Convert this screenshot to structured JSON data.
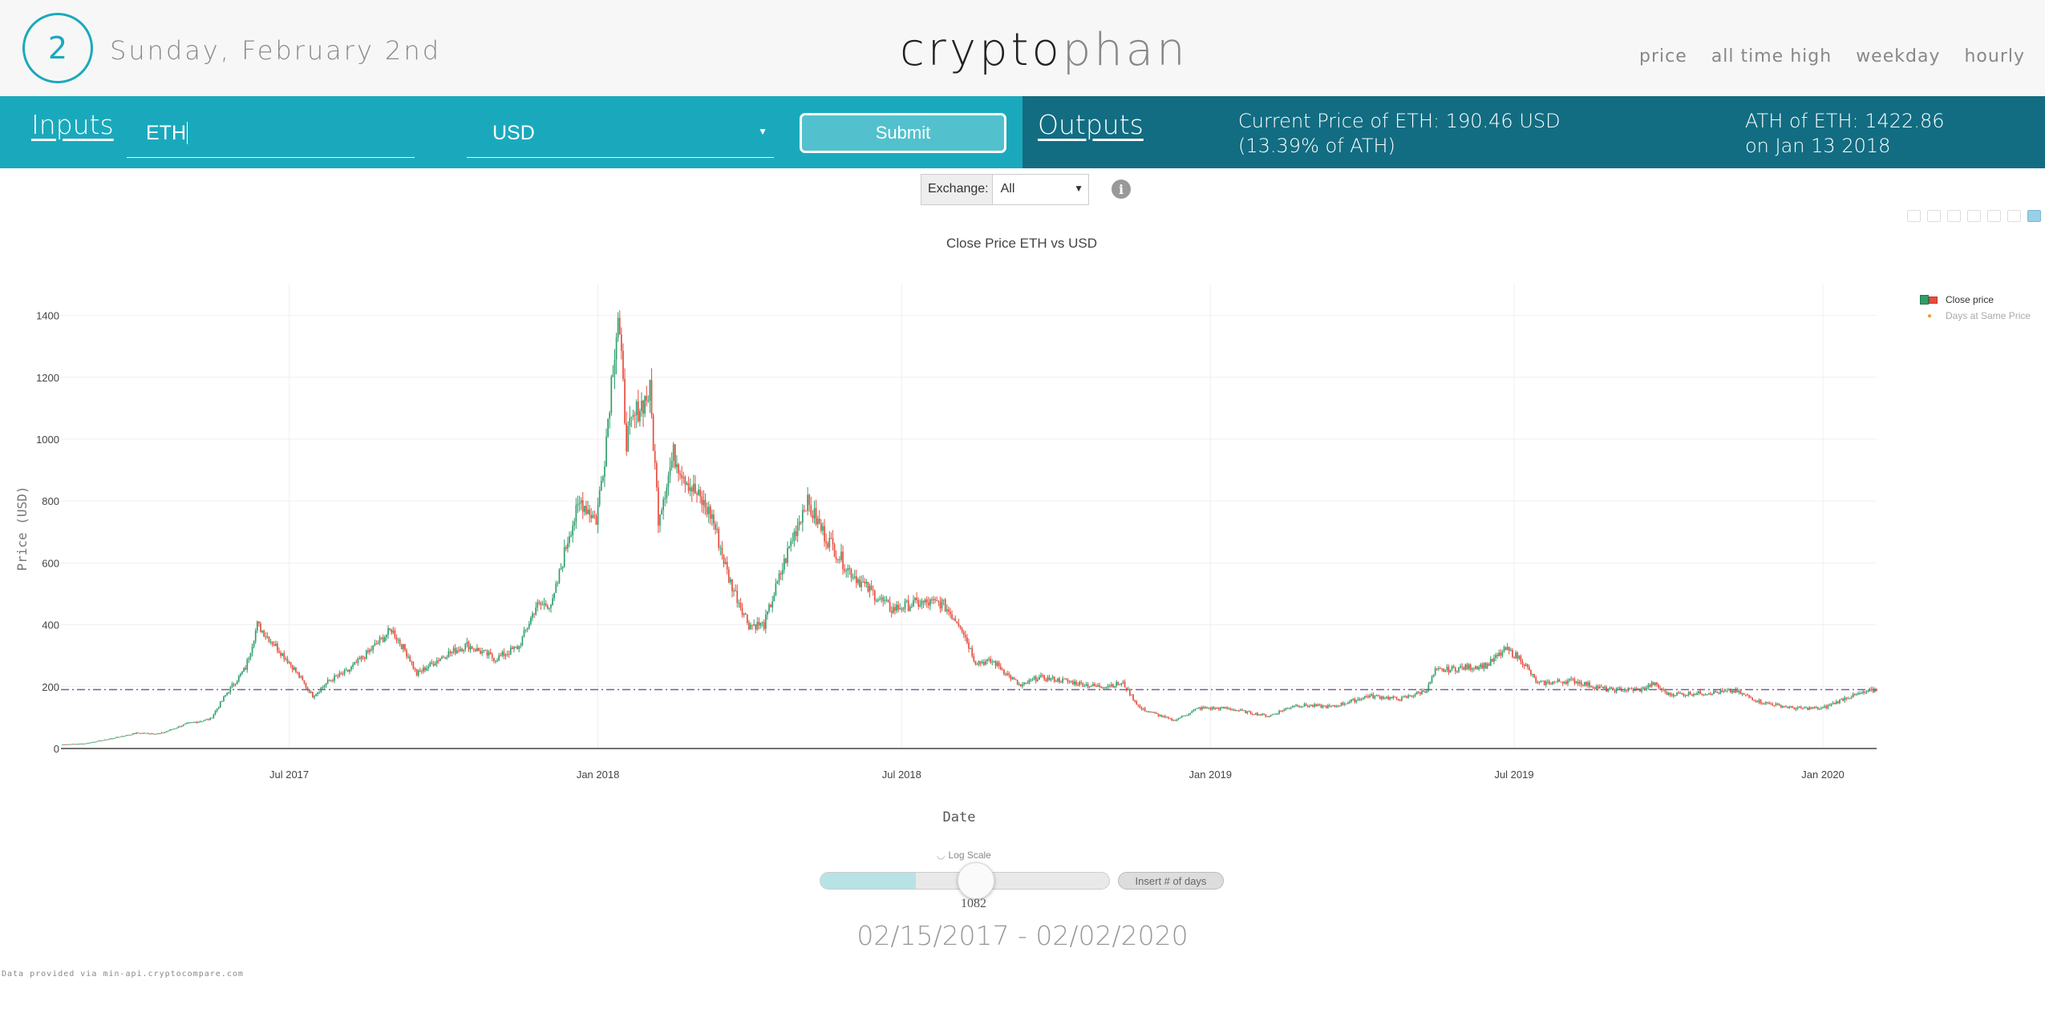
{
  "header": {
    "day_number": "2",
    "date": "Sunday, February 2nd",
    "logo_main": "crypto",
    "logo_accent": "phan",
    "nav": [
      "price",
      "all time high",
      "weekday",
      "hourly"
    ]
  },
  "inputs": {
    "title": "Inputs",
    "coin_value": "ETH",
    "currency_value": "USD",
    "submit_label": "Submit"
  },
  "outputs": {
    "title": "Outputs",
    "current_line1": "Current Price of ETH: 190.46 USD",
    "current_line2": "(13.39% of ATH)",
    "ath_line1": "ATH of ETH: 1422.86",
    "ath_line2": "on Jan 13 2018"
  },
  "exchange": {
    "label": "Exchange:",
    "value": "All"
  },
  "info_icon": "i",
  "colors": {
    "inputs_bar": "#1aa9bc",
    "outputs_bar": "#126d82",
    "increasing": "#2e9e6a",
    "decreasing": "#e74c3c",
    "reference_line": "#7a5a9a"
  },
  "chart_data": {
    "type": "candlestick",
    "title": "Close Price ETH vs USD",
    "xlabel": "Date",
    "ylabel": "Price (USD)",
    "x_ticks": [
      "Jul 2017",
      "Jan 2018",
      "Jul 2018",
      "Jan 2019",
      "Jul 2019",
      "Jan 2020"
    ],
    "y_ticks": [
      0,
      200,
      400,
      600,
      800,
      1000,
      1200,
      1400
    ],
    "ylim": [
      0,
      1500
    ],
    "xlim": [
      "2017-02-15",
      "2020-02-02"
    ],
    "grid": true,
    "legend_position": "top-right",
    "legend": [
      "Close price",
      "Days at Same Price"
    ],
    "reference_line": {
      "name": "Days at Same Price",
      "y": 190.46
    },
    "close_series": [
      [
        "2017-02-15",
        13
      ],
      [
        "2017-03-01",
        16
      ],
      [
        "2017-03-15",
        30
      ],
      [
        "2017-04-01",
        50
      ],
      [
        "2017-04-15",
        48
      ],
      [
        "2017-05-01",
        80
      ],
      [
        "2017-05-15",
        95
      ],
      [
        "2017-05-25",
        180
      ],
      [
        "2017-06-05",
        260
      ],
      [
        "2017-06-12",
        400
      ],
      [
        "2017-06-20",
        350
      ],
      [
        "2017-07-01",
        280
      ],
      [
        "2017-07-15",
        170
      ],
      [
        "2017-07-25",
        220
      ],
      [
        "2017-08-05",
        250
      ],
      [
        "2017-08-15",
        300
      ],
      [
        "2017-08-31",
        385
      ],
      [
        "2017-09-10",
        300
      ],
      [
        "2017-09-15",
        240
      ],
      [
        "2017-10-01",
        300
      ],
      [
        "2017-10-15",
        335
      ],
      [
        "2017-11-01",
        290
      ],
      [
        "2017-11-15",
        330
      ],
      [
        "2017-11-25",
        460
      ],
      [
        "2017-12-05",
        470
      ],
      [
        "2017-12-15",
        700
      ],
      [
        "2017-12-22",
        800
      ],
      [
        "2017-12-31",
        740
      ],
      [
        "2018-01-05",
        950
      ],
      [
        "2018-01-10",
        1250
      ],
      [
        "2018-01-13",
        1400
      ],
      [
        "2018-01-18",
        1000
      ],
      [
        "2018-01-25",
        1100
      ],
      [
        "2018-02-01",
        1150
      ],
      [
        "2018-02-06",
        750
      ],
      [
        "2018-02-15",
        950
      ],
      [
        "2018-02-25",
        850
      ],
      [
        "2018-03-10",
        750
      ],
      [
        "2018-03-20",
        550
      ],
      [
        "2018-04-01",
        400
      ],
      [
        "2018-04-10",
        400
      ],
      [
        "2018-04-25",
        650
      ],
      [
        "2018-05-05",
        800
      ],
      [
        "2018-05-15",
        700
      ],
      [
        "2018-05-30",
        580
      ],
      [
        "2018-06-10",
        520
      ],
      [
        "2018-06-25",
        450
      ],
      [
        "2018-07-10",
        470
      ],
      [
        "2018-07-25",
        470
      ],
      [
        "2018-08-05",
        400
      ],
      [
        "2018-08-14",
        280
      ],
      [
        "2018-08-25",
        280
      ],
      [
        "2018-09-10",
        200
      ],
      [
        "2018-09-20",
        230
      ],
      [
        "2018-10-05",
        220
      ],
      [
        "2018-10-25",
        200
      ],
      [
        "2018-11-10",
        210
      ],
      [
        "2018-11-20",
        130
      ],
      [
        "2018-12-10",
        90
      ],
      [
        "2018-12-25",
        130
      ],
      [
        "2019-01-10",
        130
      ],
      [
        "2019-02-05",
        105
      ],
      [
        "2019-02-20",
        140
      ],
      [
        "2019-03-15",
        135
      ],
      [
        "2019-04-05",
        170
      ],
      [
        "2019-04-25",
        160
      ],
      [
        "2019-05-10",
        190
      ],
      [
        "2019-05-15",
        250
      ],
      [
        "2019-05-30",
        260
      ],
      [
        "2019-06-15",
        270
      ],
      [
        "2019-06-26",
        320
      ],
      [
        "2019-07-05",
        290
      ],
      [
        "2019-07-15",
        210
      ],
      [
        "2019-08-05",
        220
      ],
      [
        "2019-08-25",
        190
      ],
      [
        "2019-09-15",
        190
      ],
      [
        "2019-09-22",
        210
      ],
      [
        "2019-10-01",
        175
      ],
      [
        "2019-10-25",
        180
      ],
      [
        "2019-11-10",
        185
      ],
      [
        "2019-11-25",
        150
      ],
      [
        "2019-12-15",
        130
      ],
      [
        "2020-01-01",
        130
      ],
      [
        "2020-01-15",
        165
      ],
      [
        "2020-02-02",
        190
      ]
    ]
  },
  "controls": {
    "log_scale_label": "Log Scale",
    "slider_value": "1082",
    "slider_fraction": 0.33,
    "days_button": "Insert # of days",
    "date_range": "02/15/2017 - 02/02/2020",
    "credit": "Data provided via min-api.cryptocompare.com"
  }
}
